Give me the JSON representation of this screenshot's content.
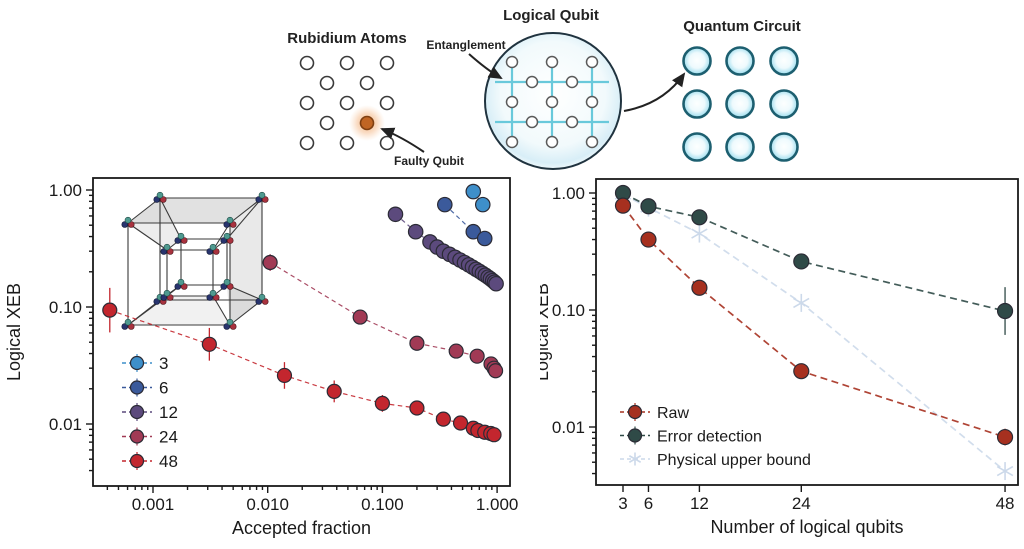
{
  "header": {
    "rubidium_title": "Rubidium Atoms",
    "faulty_label": "Faulty Qubit",
    "logical_title": "Logical Qubit",
    "entanglement_label": "Entanglement",
    "circuit_title": "Quantum Circuit"
  },
  "colors": {
    "axis": "#1a1a1a",
    "series_3": "#3e8fca",
    "series_6": "#3b5a9b",
    "series_12": "#5c4a7d",
    "series_24": "#a13a55",
    "series_48": "#c3262e",
    "raw": "#a6301f",
    "error_detection": "#2f4a47",
    "physical_upper_bound": "#ccd9ea",
    "entangle_line": "#69c9db",
    "faulty_qubit": "#c06524"
  },
  "chart_data": [
    {
      "type": "scatter",
      "title": "",
      "xlabel": "Accepted fraction",
      "ylabel": "Logical XEB",
      "xscale": "log",
      "yscale": "log",
      "xlim": [
        0.0003,
        1.3
      ],
      "ylim": [
        0.003,
        1.27
      ],
      "grid": false,
      "xticks": [
        0.001,
        0.01,
        0.1,
        1.0
      ],
      "xtick_labels": [
        "0.001",
        "0.010",
        "0.100",
        "1.000"
      ],
      "yticks": [
        1.0,
        0.1,
        0.01
      ],
      "ytick_labels": [
        "1.00",
        "0.10",
        "0.01"
      ],
      "legend_position": "lower-left",
      "series": [
        {
          "name": "12",
          "color": "#5c4a7d",
          "marker": "circle",
          "ms": 7.2,
          "x": [
            0.13,
            0.195,
            0.26,
            0.3,
            0.34,
            0.385,
            0.43,
            0.475,
            0.52,
            0.565,
            0.61,
            0.655,
            0.7,
            0.745,
            0.79,
            0.835,
            0.875,
            0.915,
            0.95,
            0.98
          ],
          "y": [
            0.62,
            0.44,
            0.36,
            0.325,
            0.3,
            0.282,
            0.266,
            0.252,
            0.24,
            0.229,
            0.219,
            0.21,
            0.202,
            0.194,
            0.187,
            0.18,
            0.174,
            0.168,
            0.163,
            0.158
          ],
          "err_factor": null
        },
        {
          "name": "6",
          "color": "#3b5a9b",
          "marker": "circle",
          "ms": 7.2,
          "x": [
            0.35,
            0.62,
            0.78
          ],
          "y": [
            0.75,
            0.44,
            0.385
          ],
          "err_factor": null
        },
        {
          "name": "3",
          "color": "#3e8fca",
          "marker": "circle",
          "ms": 7.2,
          "x": [
            0.62,
            0.75
          ],
          "y": [
            0.97,
            0.75
          ],
          "err_factor": null
        },
        {
          "name": "24",
          "color": "#a13a55",
          "marker": "circle",
          "ms": 7,
          "x": [
            0.0105,
            0.064,
            0.2,
            0.44,
            0.67,
            0.885,
            0.94,
            0.97
          ],
          "y": [
            0.24,
            0.082,
            0.049,
            0.042,
            0.038,
            0.0326,
            0.03,
            0.0285
          ],
          "err_factor": [
            1.18,
            1.12,
            1.1,
            1.08,
            1.07,
            1.06,
            1.06,
            1.06
          ]
        },
        {
          "name": "48",
          "color": "#c3262e",
          "marker": "circle",
          "ms": 7,
          "x": [
            0.00042,
            0.0031,
            0.014,
            0.038,
            0.1,
            0.2,
            0.34,
            0.48,
            0.62,
            0.68,
            0.78,
            0.88,
            0.94
          ],
          "y": [
            0.094,
            0.048,
            0.026,
            0.019,
            0.015,
            0.0137,
            0.011,
            0.0102,
            0.0092,
            0.0088,
            0.0085,
            0.0083,
            0.0081
          ],
          "err_factor": [
            1.55,
            1.38,
            1.3,
            1.24,
            1.18,
            1.15,
            1.12,
            1.1,
            1.09,
            1.08,
            1.08,
            1.07,
            1.07
          ]
        }
      ],
      "legend": [
        {
          "label": "3",
          "color": "#3e8fca",
          "marker": "circle"
        },
        {
          "label": "6",
          "color": "#3b5a9b",
          "marker": "circle"
        },
        {
          "label": "12",
          "color": "#5c4a7d",
          "marker": "circle"
        },
        {
          "label": "24",
          "color": "#a13a55",
          "marker": "circle"
        },
        {
          "label": "48",
          "color": "#c3262e",
          "marker": "circle"
        }
      ]
    },
    {
      "type": "scatter",
      "title": "",
      "xlabel": "Number of logical qubits",
      "ylabel": "Logical XEB",
      "xscale": "linear",
      "yscale": "log",
      "xlim": [
        0,
        49.5
      ],
      "ylim": [
        0.0032,
        1.32
      ],
      "grid": false,
      "xticks": [
        3,
        6,
        12,
        24,
        48
      ],
      "xtick_labels": [
        "3",
        "6",
        "12",
        "24",
        "48"
      ],
      "yticks": [
        1.0,
        0.1,
        0.01
      ],
      "ytick_labels": [
        "1.00",
        "0.10",
        "0.01"
      ],
      "legend_position": "lower-left",
      "series": [
        {
          "name": "Physical upper bound",
          "color": "#ccd9ea",
          "marker": "asterisk",
          "ms": 9,
          "lw": 1.7,
          "x": [
            3,
            6,
            12,
            24,
            48
          ],
          "y": [
            0.97,
            0.75,
            0.45,
            0.115,
            0.0042
          ],
          "err_factor": null
        },
        {
          "name": "Error detection",
          "color": "#2f4a47",
          "marker": "circle",
          "ms": 7.5,
          "lw": 1.7,
          "x": [
            3,
            6,
            12,
            24,
            48
          ],
          "y": [
            1.0,
            0.77,
            0.62,
            0.26,
            0.098
          ],
          "err_factor": [
            1.02,
            1.03,
            1.04,
            1.07,
            1.6
          ]
        },
        {
          "name": "Raw",
          "color": "#a6301f",
          "marker": "circle",
          "ms": 7.5,
          "lw": 1.7,
          "x": [
            3,
            6,
            12,
            24,
            48
          ],
          "y": [
            0.78,
            0.4,
            0.155,
            0.03,
            0.0082
          ],
          "err_factor": [
            1.04,
            1.05,
            1.08,
            1.1,
            1.18
          ]
        }
      ],
      "legend": [
        {
          "label": "Raw",
          "color": "#a6301f",
          "marker": "circle"
        },
        {
          "label": "Error detection",
          "color": "#2f4a47",
          "marker": "circle"
        },
        {
          "label": "Physical upper bound",
          "color": "#ccd9ea",
          "marker": "asterisk"
        }
      ]
    }
  ]
}
